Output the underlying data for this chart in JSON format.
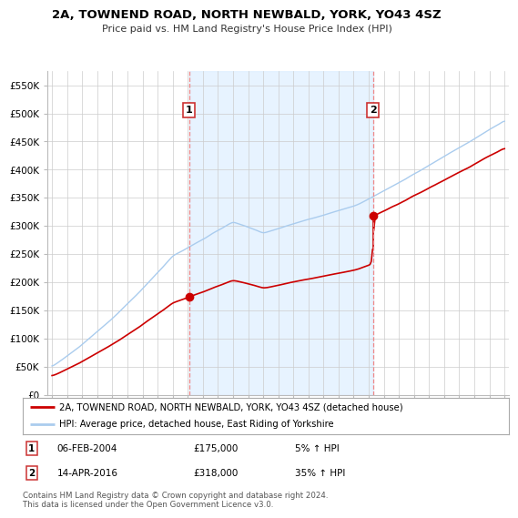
{
  "title": "2A, TOWNEND ROAD, NORTH NEWBALD, YORK, YO43 4SZ",
  "subtitle": "Price paid vs. HM Land Registry's House Price Index (HPI)",
  "ylim": [
    0,
    575000
  ],
  "yticks": [
    0,
    50000,
    100000,
    150000,
    200000,
    250000,
    300000,
    350000,
    400000,
    450000,
    500000,
    550000
  ],
  "ytick_labels": [
    "£0",
    "£50K",
    "£100K",
    "£150K",
    "£200K",
    "£250K",
    "£300K",
    "£350K",
    "£400K",
    "£450K",
    "£500K",
    "£550K"
  ],
  "x_start_year": 1995,
  "x_end_year": 2025,
  "sale1_year": 2004.09,
  "sale1_price": 175000,
  "sale2_year": 2016.28,
  "sale2_price": 318000,
  "hpi_line_color": "#aaccee",
  "price_line_color": "#cc0000",
  "dashed_line_color": "#ee8888",
  "shade_color": "#ddeeff",
  "legend_label1": "2A, TOWNEND ROAD, NORTH NEWBALD, YORK, YO43 4SZ (detached house)",
  "legend_label2": "HPI: Average price, detached house, East Riding of Yorkshire",
  "annotation1_label": "1",
  "annotation1_date": "06-FEB-2004",
  "annotation1_price": "£175,000",
  "annotation1_pct": "5% ↑ HPI",
  "annotation2_label": "2",
  "annotation2_date": "14-APR-2016",
  "annotation2_price": "£318,000",
  "annotation2_pct": "35% ↑ HPI",
  "footer": "Contains HM Land Registry data © Crown copyright and database right 2024.\nThis data is licensed under the Open Government Licence v3.0.",
  "bg_color": "#ffffff",
  "plot_bg_color": "#ffffff",
  "grid_color": "#cccccc"
}
